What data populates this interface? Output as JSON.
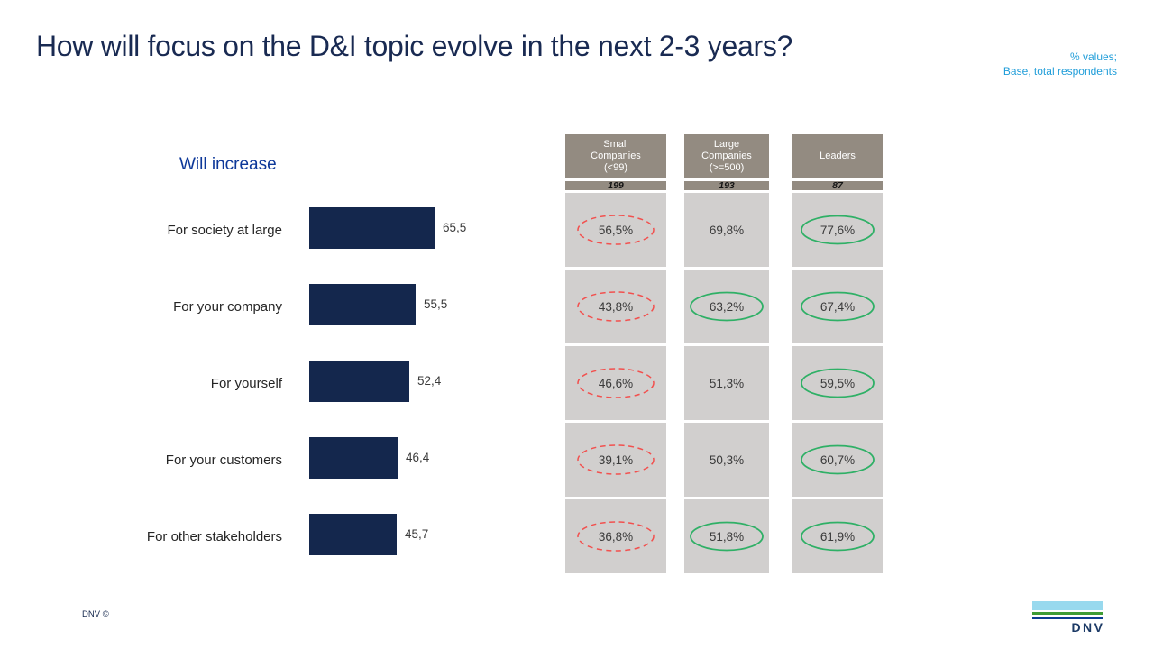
{
  "slide": {
    "title": "How will focus on the D&I topic evolve in the next 2-3 years?",
    "annotation": {
      "line1": "% values;",
      "line2": "Base, total respondents"
    },
    "footer_copyright": "DNV ©",
    "logo_text": "DNV"
  },
  "colors": {
    "title_navy": "#192a52",
    "bar_navy": "#14274d",
    "chart_title_blue": "#0d3899",
    "annotation_blue": "#1f9dd9",
    "table_header_taupe": "#938b81",
    "cell_gray": "#d1cfce",
    "mark_red": "#f2504e",
    "mark_green": "#2fb066",
    "logo_sky": "#98d9ee",
    "logo_green": "#3f9c35",
    "logo_blue": "#0d3d91"
  },
  "chart_data": {
    "type": "bar",
    "orientation": "horizontal",
    "title": "Will increase",
    "categories": [
      "For society at large",
      "For your company",
      "For yourself",
      "For your customers",
      "For other stakeholders"
    ],
    "values": [
      65.5,
      55.5,
      52.4,
      46.4,
      45.7
    ],
    "value_labels": [
      "65,5",
      "55,5",
      "52,4",
      "46,4",
      "45,7"
    ],
    "xlabel": "",
    "ylabel": "",
    "xlim": [
      0,
      100
    ],
    "grid": false,
    "legend": false
  },
  "table": {
    "columns": [
      {
        "label": "Small Companies (<99)",
        "label_lines": [
          "Small",
          "Companies",
          "(<99)"
        ],
        "base": "199"
      },
      {
        "label": "Large Companies (>=500)",
        "label_lines": [
          "Large",
          "Companies",
          "(>=500)"
        ],
        "base": "193"
      },
      {
        "label": "Leaders",
        "label_lines": [
          "Leaders"
        ],
        "base": "87"
      }
    ],
    "rows": [
      {
        "cells": [
          {
            "value": "56,5%",
            "mark": "red-dashed"
          },
          {
            "value": "69,8%",
            "mark": "none"
          },
          {
            "value": "77,6%",
            "mark": "green-solid"
          }
        ]
      },
      {
        "cells": [
          {
            "value": "43,8%",
            "mark": "red-dashed"
          },
          {
            "value": "63,2%",
            "mark": "green-solid"
          },
          {
            "value": "67,4%",
            "mark": "green-solid"
          }
        ]
      },
      {
        "cells": [
          {
            "value": "46,6%",
            "mark": "red-dashed"
          },
          {
            "value": "51,3%",
            "mark": "none"
          },
          {
            "value": "59,5%",
            "mark": "green-solid"
          }
        ]
      },
      {
        "cells": [
          {
            "value": "39,1%",
            "mark": "red-dashed"
          },
          {
            "value": "50,3%",
            "mark": "none"
          },
          {
            "value": "60,7%",
            "mark": "green-solid"
          }
        ]
      },
      {
        "cells": [
          {
            "value": "36,8%",
            "mark": "red-dashed"
          },
          {
            "value": "51,8%",
            "mark": "green-solid"
          },
          {
            "value": "61,9%",
            "mark": "green-solid"
          }
        ]
      }
    ]
  }
}
